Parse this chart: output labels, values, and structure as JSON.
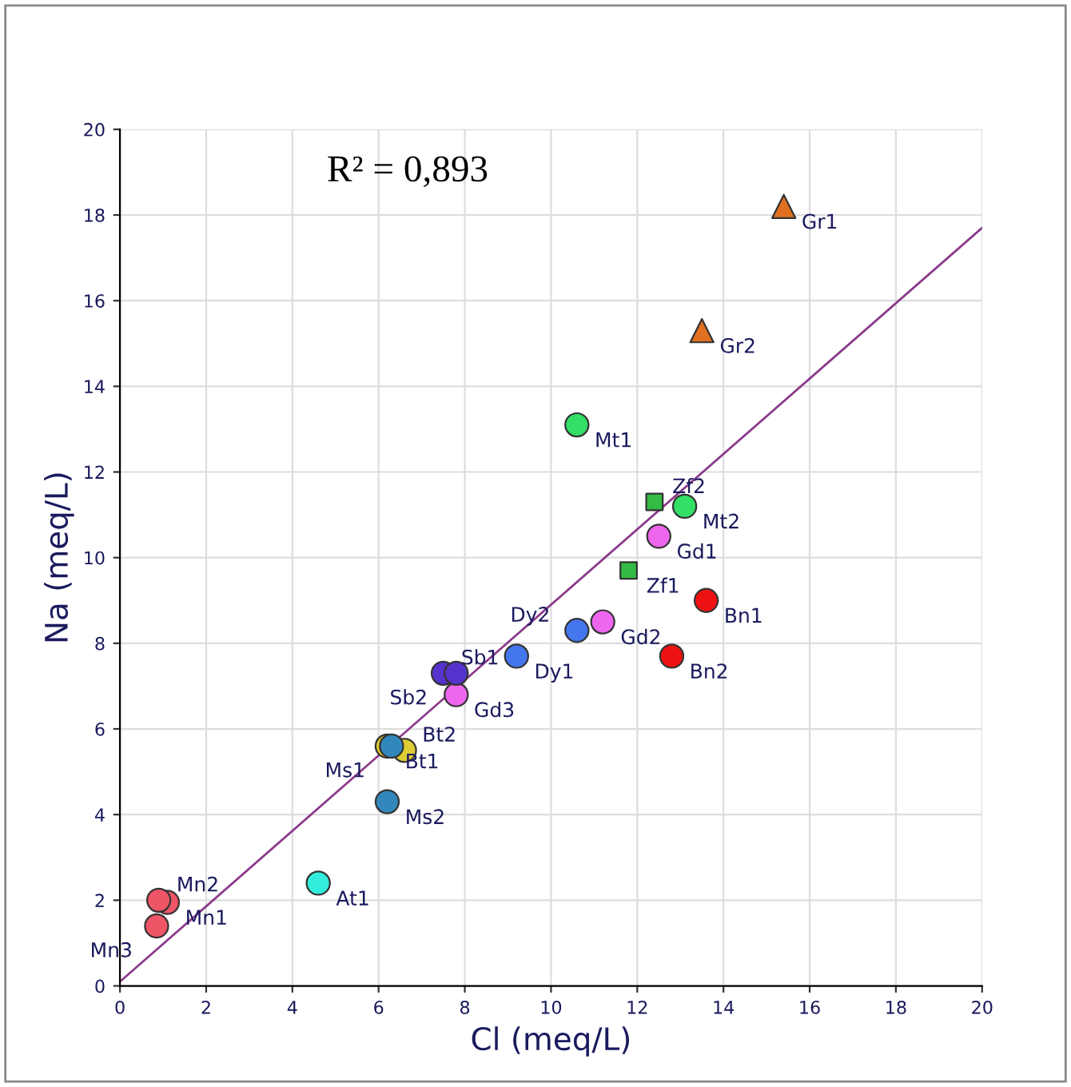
{
  "chart_data": {
    "type": "scatter",
    "xlabel": "Cl (meq/L)",
    "ylabel": "Na (meq/L)",
    "annotations": [
      "R² = 0,893"
    ],
    "xlim": [
      0,
      20
    ],
    "ylim": [
      0,
      20
    ],
    "xticks": [
      0,
      2,
      4,
      6,
      8,
      10,
      12,
      14,
      16,
      18,
      20
    ],
    "yticks": [
      0,
      2,
      4,
      6,
      8,
      10,
      12,
      14,
      16,
      18,
      20
    ],
    "grid": true,
    "series": [
      {
        "type": "line",
        "color": "#8b3a8b",
        "x": [
          0,
          20
        ],
        "values": [
          0.1,
          17.7
        ]
      },
      {
        "color": "#e07020",
        "marker": "triangle",
        "x": [
          15.4,
          13.5
        ],
        "values": [
          18.2,
          15.3
        ],
        "value_labels": [
          "Gr1",
          "Gr2"
        ]
      },
      {
        "color": "#33e066",
        "marker": "circle",
        "x": [
          10.6,
          13.1
        ],
        "values": [
          13.1,
          11.2
        ],
        "value_labels": [
          "Mt1",
          "Mt2"
        ]
      },
      {
        "color": "#33bb44",
        "marker": "square",
        "x": [
          12.4,
          11.8
        ],
        "values": [
          11.3,
          9.7
        ],
        "value_labels": [
          "Zf2",
          "Zf1"
        ]
      },
      {
        "color": "#ee66ee",
        "marker": "circle",
        "x": [
          12.5,
          11.2,
          7.8
        ],
        "values": [
          10.5,
          8.5,
          6.8
        ],
        "value_labels": [
          "Gd1",
          "Gd2",
          "Gd3"
        ]
      },
      {
        "color": "#ee1111",
        "marker": "circle",
        "x": [
          13.6,
          12.8
        ],
        "values": [
          9.0,
          7.7
        ],
        "value_labels": [
          "Bn1",
          "Bn2"
        ]
      },
      {
        "color": "#4477ee",
        "marker": "circle",
        "x": [
          9.2,
          10.6
        ],
        "values": [
          7.7,
          8.3
        ],
        "value_labels": [
          "Dy1",
          "Dy2"
        ]
      },
      {
        "color": "#5533cc",
        "marker": "circle",
        "x": [
          7.5,
          7.8
        ],
        "values": [
          7.3,
          7.3
        ],
        "value_labels": [
          "Sb1",
          "Sb2"
        ]
      },
      {
        "color": "#ddcc33",
        "marker": "circle",
        "x": [
          6.2,
          6.6
        ],
        "values": [
          5.6,
          5.5
        ],
        "value_labels": [
          "Bt1",
          "Bt2"
        ]
      },
      {
        "color": "#3388bb",
        "marker": "circle",
        "x": [
          6.3,
          6.2
        ],
        "values": [
          5.6,
          4.3
        ],
        "value_labels": [
          "Ms1",
          "Ms2"
        ]
      },
      {
        "color": "#33eedd",
        "marker": "circle",
        "x": [
          4.6
        ],
        "values": [
          2.4
        ],
        "value_labels": [
          "At1"
        ]
      },
      {
        "color": "#ee5566",
        "marker": "circle",
        "x": [
          1.1,
          0.9,
          0.85
        ],
        "values": [
          1.95,
          2.0,
          1.4
        ],
        "value_labels": [
          "Mn1",
          "Mn2",
          "Mn3"
        ]
      }
    ]
  }
}
